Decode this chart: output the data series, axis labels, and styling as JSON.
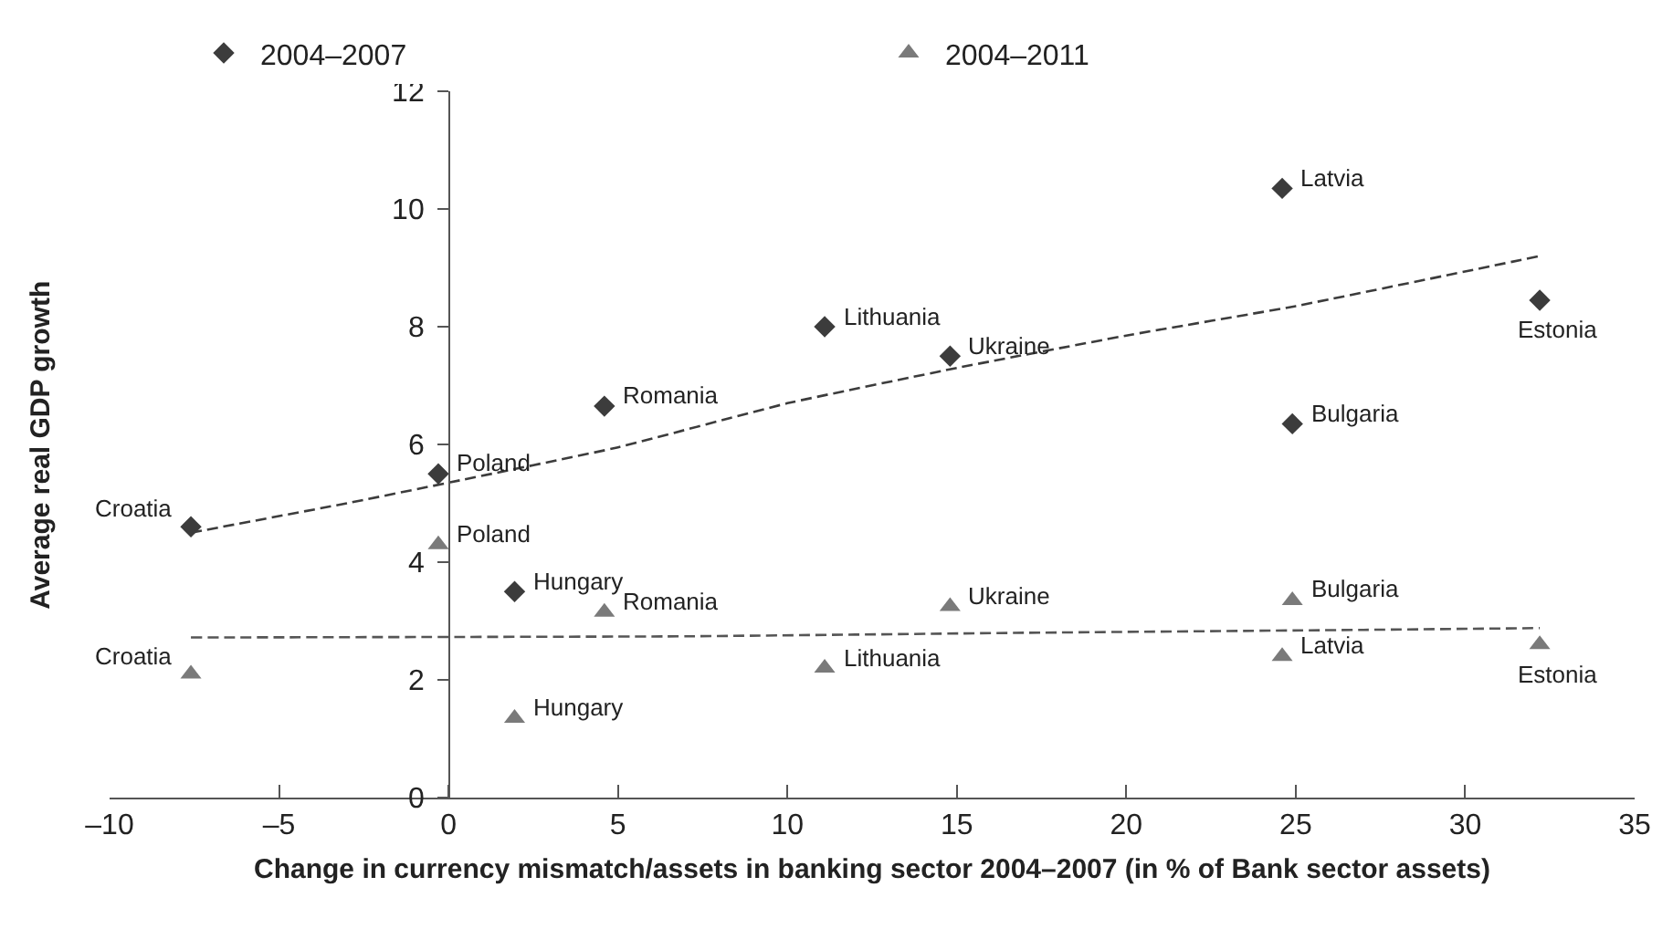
{
  "chart_data": {
    "type": "scatter",
    "xlabel": "Change in currency mismatch/assets in banking sector 2004–2007 (in % of Bank sector assets)",
    "ylabel": "Average real GDP growth",
    "xlim": [
      -10,
      35
    ],
    "ylim": [
      0,
      12
    ],
    "xticks": [
      {
        "value": -10,
        "label": "–10"
      },
      {
        "value": -5,
        "label": "–5"
      },
      0,
      5,
      10,
      15,
      20,
      25,
      30,
      35
    ],
    "yticks": [
      0,
      2,
      4,
      6,
      8,
      10,
      12
    ],
    "legend": "top",
    "series": [
      {
        "name": "2004–2007",
        "color": "#3c3c3c",
        "marker": "diamond",
        "x": [
          -7.6,
          -0.3,
          1.95,
          4.6,
          11.1,
          14.8,
          24.6,
          24.9,
          32.2
        ],
        "values": [
          4.6,
          5.5,
          3.5,
          6.65,
          8.0,
          7.5,
          10.35,
          6.35,
          8.45
        ]
      },
      {
        "name": "2004–2011",
        "color": "#7a7a7a",
        "marker": "triangle",
        "x": [
          -7.6,
          -0.3,
          1.95,
          4.6,
          11.1,
          14.8,
          24.6,
          24.9,
          32.2
        ],
        "values": [
          2.1,
          4.3,
          1.35,
          3.15,
          2.2,
          3.25,
          2.4,
          3.35,
          2.6
        ]
      },
      {
        "type": "line",
        "color": "#3c3c3c",
        "line_style": "dashed",
        "marker": "none",
        "x": [
          -7.6,
          -3,
          0,
          5,
          10,
          15,
          20,
          25,
          32.2
        ],
        "values": [
          4.5,
          5.0,
          5.35,
          5.95,
          6.7,
          7.3,
          7.85,
          8.35,
          9.2
        ]
      },
      {
        "type": "line",
        "color": "#555555",
        "line_style": "dashed",
        "marker": "none",
        "x": [
          -7.6,
          7,
          17,
          27,
          32.2
        ],
        "values": [
          2.72,
          2.74,
          2.8,
          2.85,
          2.88
        ]
      }
    ],
    "annotations": [
      {
        "text": "Croatia",
        "x": -7.6,
        "y": 4.6
      },
      {
        "text": "Poland",
        "x": -0.3,
        "y": 5.5
      },
      {
        "text": "Hungary",
        "x": 1.95,
        "y": 3.5
      },
      {
        "text": "Romania",
        "x": 4.6,
        "y": 6.65
      },
      {
        "text": "Lithuania",
        "x": 11.1,
        "y": 8.0
      },
      {
        "text": "Ukraine",
        "x": 14.8,
        "y": 7.5
      },
      {
        "text": "Latvia",
        "x": 24.6,
        "y": 10.35
      },
      {
        "text": "Bulgaria",
        "x": 24.9,
        "y": 6.35
      },
      {
        "text": "Estonia",
        "x": 32.2,
        "y": 8.45
      },
      {
        "text": "Croatia",
        "x": -7.6,
        "y": 2.1
      },
      {
        "text": "Poland",
        "x": -0.3,
        "y": 4.3
      },
      {
        "text": "Hungary",
        "x": 1.95,
        "y": 1.35
      },
      {
        "text": "Romania",
        "x": 4.6,
        "y": 3.15
      },
      {
        "text": "Lithuania",
        "x": 11.1,
        "y": 2.2
      },
      {
        "text": "Ukraine",
        "x": 14.8,
        "y": 3.25
      },
      {
        "text": "Latvia",
        "x": 24.6,
        "y": 2.4
      },
      {
        "text": "Bulgaria",
        "x": 24.9,
        "y": 3.35
      },
      {
        "text": "Estonia",
        "x": 32.2,
        "y": 2.6
      }
    ]
  }
}
